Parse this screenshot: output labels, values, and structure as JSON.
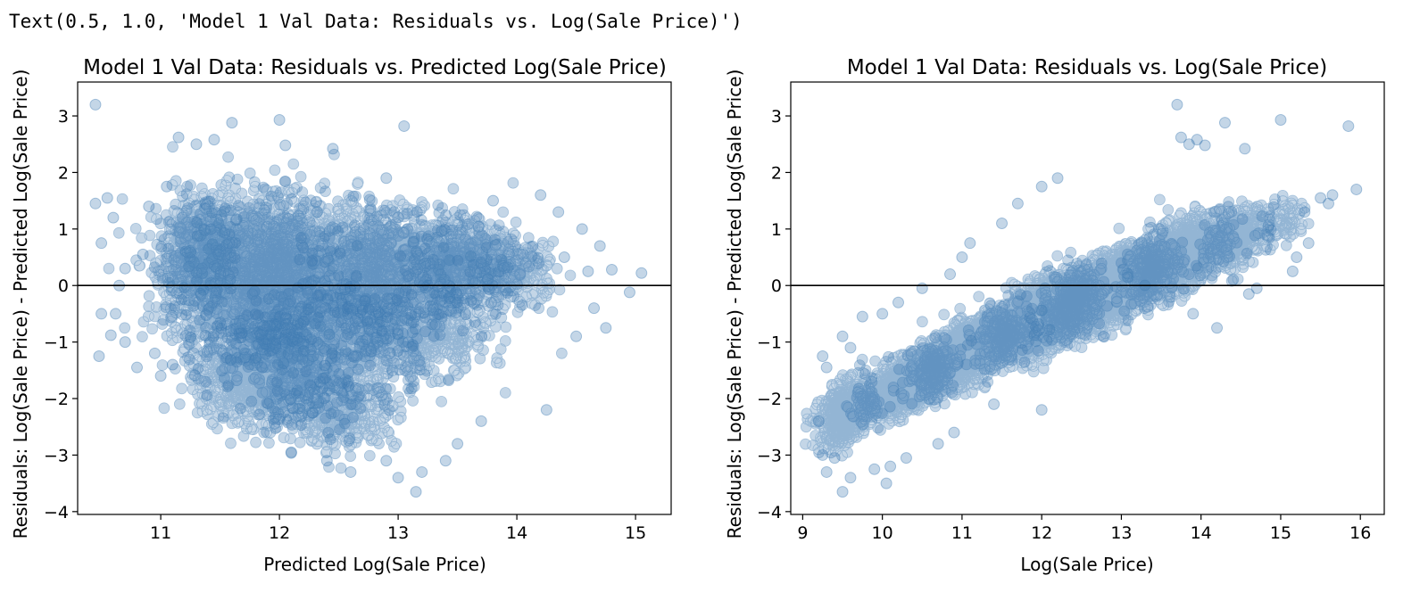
{
  "output_line": "Text(0.5, 1.0, 'Model 1 Val Data: Residuals vs. Log(Sale Price)')",
  "colors": {
    "points": "#3a78b1",
    "zero_line": "#000000",
    "axes": "#000000"
  },
  "chart_data": [
    {
      "type": "scatter",
      "title": "Model 1 Val Data: Residuals vs. Predicted Log(Sale Price)",
      "xlabel": "Predicted Log(Sale Price)",
      "ylabel": "Residuals: Log(Sale Price) - Predicted Log(Sale Price)",
      "xlim": [
        10.3,
        15.3
      ],
      "ylim": [
        -4.05,
        3.6
      ],
      "xticks": [
        11,
        12,
        13,
        14,
        15
      ],
      "yticks": [
        -4,
        -3,
        -2,
        -1,
        0,
        1,
        2,
        3
      ],
      "grid": false,
      "hline": 0,
      "point_alpha": 0.3,
      "points": [
        [
          10.45,
          3.2
        ],
        [
          11.6,
          2.88
        ],
        [
          12.0,
          2.93
        ],
        [
          13.05,
          2.82
        ],
        [
          11.15,
          2.62
        ],
        [
          11.3,
          2.5
        ],
        [
          11.45,
          2.58
        ],
        [
          12.05,
          2.48
        ],
        [
          12.45,
          2.42
        ],
        [
          12.9,
          1.9
        ],
        [
          13.8,
          1.5
        ],
        [
          14.2,
          1.6
        ],
        [
          14.35,
          1.3
        ],
        [
          14.55,
          1.0
        ],
        [
          14.4,
          0.5
        ],
        [
          14.6,
          0.25
        ],
        [
          14.7,
          0.7
        ],
        [
          14.8,
          0.28
        ],
        [
          14.95,
          -0.12
        ],
        [
          15.05,
          0.22
        ],
        [
          14.65,
          -0.4
        ],
        [
          14.5,
          -0.9
        ],
        [
          14.75,
          -0.75
        ],
        [
          14.25,
          -2.2
        ],
        [
          13.2,
          -3.3
        ],
        [
          13.15,
          -3.65
        ],
        [
          13.0,
          -3.4
        ],
        [
          12.9,
          -3.1
        ],
        [
          12.6,
          -3.3
        ],
        [
          12.4,
          -3.1
        ],
        [
          12.1,
          -2.95
        ],
        [
          13.4,
          -3.1
        ],
        [
          13.5,
          -2.8
        ],
        [
          13.7,
          -2.4
        ],
        [
          10.45,
          1.45
        ],
        [
          10.5,
          -0.5
        ],
        [
          10.48,
          -1.25
        ],
        [
          10.5,
          0.75
        ],
        [
          10.62,
          -0.5
        ],
        [
          10.7,
          -1.0
        ],
        [
          10.8,
          -1.45
        ],
        [
          10.9,
          1.4
        ],
        [
          10.95,
          -1.2
        ],
        [
          11.05,
          1.75
        ],
        [
          10.55,
          1.55
        ],
        [
          10.65,
          0.0
        ],
        [
          10.58,
          -0.88
        ],
        [
          10.7,
          0.3
        ],
        [
          10.85,
          0.55
        ],
        [
          11.0,
          -1.6
        ],
        [
          11.1,
          -1.4
        ],
        [
          10.6,
          1.2
        ]
      ],
      "density_blobs": [
        {
          "cx": 11.7,
          "cy": 0.2,
          "rx": 0.55,
          "ry": 1.15,
          "n": 2200
        },
        {
          "cx": 12.3,
          "cy": 0.15,
          "rx": 0.8,
          "ry": 1.1,
          "n": 2200
        },
        {
          "cx": 13.1,
          "cy": 0.35,
          "rx": 0.55,
          "ry": 0.75,
          "n": 1300
        },
        {
          "cx": 13.6,
          "cy": 0.4,
          "rx": 0.35,
          "ry": 0.6,
          "n": 600
        },
        {
          "cx": 11.85,
          "cy": -1.55,
          "rx": 0.45,
          "ry": 0.75,
          "n": 1200
        },
        {
          "cx": 12.4,
          "cy": -1.2,
          "rx": 0.55,
          "ry": 0.9,
          "n": 900
        },
        {
          "cx": 13.2,
          "cy": -0.9,
          "rx": 0.5,
          "ry": 0.6,
          "n": 500
        },
        {
          "cx": 11.3,
          "cy": 0.6,
          "rx": 0.25,
          "ry": 0.75,
          "n": 500
        },
        {
          "cx": 12.5,
          "cy": -2.3,
          "rx": 0.45,
          "ry": 0.5,
          "n": 350
        },
        {
          "cx": 14.0,
          "cy": 0.2,
          "rx": 0.3,
          "ry": 0.5,
          "n": 200
        }
      ]
    },
    {
      "type": "scatter",
      "title": "Model 1 Val Data: Residuals vs. Log(Sale Price)",
      "xlabel": "Log(Sale Price)",
      "ylabel": "Residuals: Log(Sale Price) - Predicted Log(Sale Price)",
      "xlim": [
        8.85,
        16.3
      ],
      "ylim": [
        -4.05,
        3.6
      ],
      "xticks": [
        9,
        10,
        11,
        12,
        13,
        14,
        15,
        16
      ],
      "yticks": [
        -4,
        -3,
        -2,
        -1,
        0,
        1,
        2,
        3
      ],
      "grid": false,
      "hline": 0,
      "point_alpha": 0.3,
      "points": [
        [
          13.7,
          3.2
        ],
        [
          14.3,
          2.88
        ],
        [
          15.0,
          2.93
        ],
        [
          15.85,
          2.82
        ],
        [
          13.75,
          2.62
        ],
        [
          13.95,
          2.58
        ],
        [
          13.85,
          2.5
        ],
        [
          14.05,
          2.48
        ],
        [
          14.55,
          2.42
        ],
        [
          15.95,
          1.7
        ],
        [
          15.65,
          1.6
        ],
        [
          15.6,
          1.45
        ],
        [
          15.3,
          1.3
        ],
        [
          15.5,
          1.55
        ],
        [
          15.35,
          0.75
        ],
        [
          15.15,
          0.25
        ],
        [
          15.2,
          0.5
        ],
        [
          14.7,
          -0.05
        ],
        [
          14.6,
          -0.15
        ],
        [
          14.2,
          -0.75
        ],
        [
          13.9,
          -0.5
        ],
        [
          12.0,
          -2.2
        ],
        [
          11.4,
          -2.1
        ],
        [
          10.9,
          -2.6
        ],
        [
          10.7,
          -2.8
        ],
        [
          10.3,
          -3.05
        ],
        [
          10.1,
          -3.2
        ],
        [
          9.9,
          -3.25
        ],
        [
          9.5,
          -3.65
        ],
        [
          9.3,
          -3.3
        ],
        [
          9.25,
          -3.0
        ],
        [
          9.4,
          -3.05
        ],
        [
          9.2,
          -2.4
        ],
        [
          9.25,
          -1.25
        ],
        [
          9.3,
          -1.45
        ],
        [
          9.5,
          -0.9
        ],
        [
          9.6,
          -1.1
        ],
        [
          9.75,
          -0.55
        ],
        [
          10.0,
          -0.5
        ],
        [
          10.2,
          -0.3
        ],
        [
          10.5,
          -0.05
        ],
        [
          10.85,
          0.2
        ],
        [
          11.0,
          0.5
        ],
        [
          11.1,
          0.75
        ],
        [
          11.5,
          1.1
        ],
        [
          11.7,
          1.45
        ],
        [
          12.0,
          1.75
        ],
        [
          12.2,
          1.9
        ],
        [
          10.05,
          -3.5
        ],
        [
          9.6,
          -3.4
        ]
      ],
      "density_blobs": [
        {
          "cx": 9.55,
          "cy": -2.25,
          "rx": 0.3,
          "ry": 0.45,
          "n": 700,
          "slope": 0.62
        },
        {
          "cx": 10.3,
          "cy": -1.75,
          "rx": 0.45,
          "ry": 0.4,
          "n": 1200,
          "slope": 0.62
        },
        {
          "cx": 11.1,
          "cy": -1.15,
          "rx": 0.55,
          "ry": 0.45,
          "n": 1800,
          "slope": 0.62
        },
        {
          "cx": 12.0,
          "cy": -0.55,
          "rx": 0.55,
          "ry": 0.5,
          "n": 2400,
          "slope": 0.62
        },
        {
          "cx": 12.85,
          "cy": -0.05,
          "rx": 0.6,
          "ry": 0.5,
          "n": 2400,
          "slope": 0.62
        },
        {
          "cx": 13.7,
          "cy": 0.5,
          "rx": 0.5,
          "ry": 0.5,
          "n": 1300,
          "slope": 0.62
        },
        {
          "cx": 14.45,
          "cy": 0.85,
          "rx": 0.35,
          "ry": 0.4,
          "n": 450,
          "slope": 0.62
        },
        {
          "cx": 15.05,
          "cy": 1.1,
          "rx": 0.25,
          "ry": 0.35,
          "n": 80,
          "slope": 0.62
        }
      ]
    }
  ]
}
